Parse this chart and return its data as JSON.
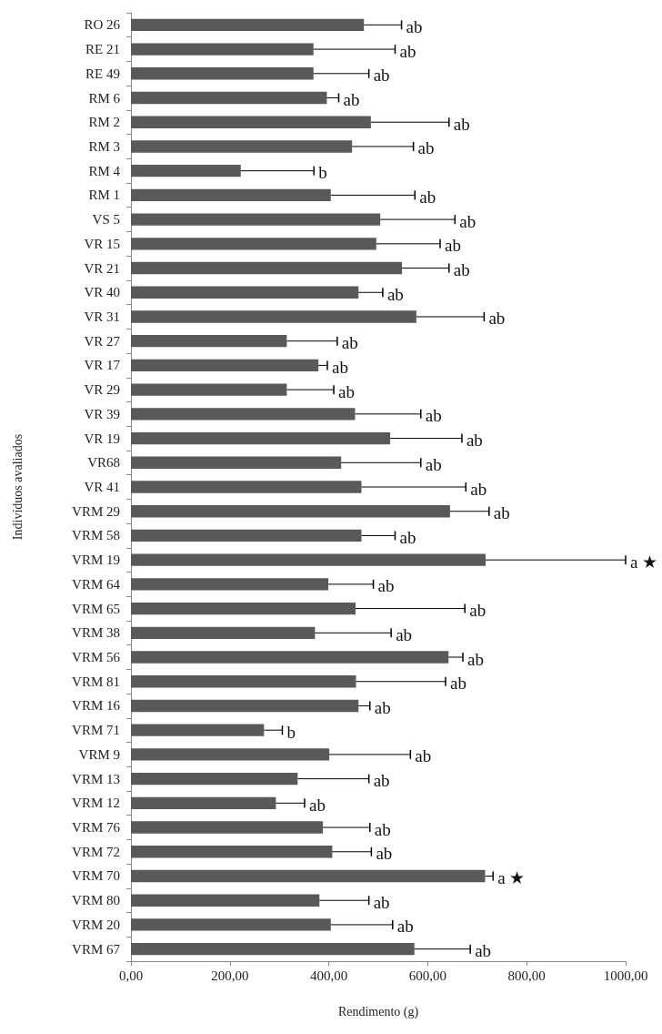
{
  "chart_data": {
    "type": "bar",
    "orientation": "horizontal",
    "xlabel": "Rendimento (g)",
    "ylabel": "Indivíduos avaliados",
    "categories": [
      "RO 26",
      "RE 21",
      "RE 49",
      "RM 6",
      "RM 2",
      "RM 3",
      "RM 4",
      "RM 1",
      "VS 5",
      "VR 15",
      "VR 21",
      "VR 40",
      "VR 31",
      "VR 27",
      "VR 17",
      "VR 29",
      "VR 39",
      "VR 19",
      "VR68",
      "VR 41",
      "VRM 29",
      "VRM 58",
      "VRM 19",
      "VRM 64",
      "VRM 65",
      "VRM 38",
      "VRM 56",
      "VRM 81",
      "VRM 16",
      "VRM 71",
      "VRM 9",
      "VRM 13",
      "VRM 12",
      "VRM 76",
      "VRM 72",
      "VRM 70",
      "VRM 80",
      "VRM 20",
      "VRM 67"
    ],
    "values": [
      471,
      369,
      369,
      396,
      485,
      447,
      222,
      404,
      504,
      496,
      548,
      460,
      577,
      315,
      379,
      315,
      453,
      524,
      425,
      466,
      645,
      466,
      717,
      399,
      454,
      372,
      642,
      455,
      460,
      269,
      401,
      337,
      293,
      388,
      407,
      716,
      381,
      404,
      573
    ],
    "errors": [
      [
        471,
        547
      ],
      [
        369,
        534
      ],
      [
        369,
        481
      ],
      [
        396,
        420
      ],
      [
        485,
        643
      ],
      [
        447,
        571
      ],
      [
        222,
        370
      ],
      [
        404,
        574
      ],
      [
        504,
        655
      ],
      [
        496,
        625
      ],
      [
        548,
        643
      ],
      [
        460,
        509
      ],
      [
        577,
        714
      ],
      [
        315,
        417
      ],
      [
        379,
        397
      ],
      [
        315,
        410
      ],
      [
        453,
        586
      ],
      [
        524,
        669
      ],
      [
        425,
        586
      ],
      [
        466,
        677
      ],
      [
        645,
        724
      ],
      [
        466,
        534
      ],
      [
        717,
        1000
      ],
      [
        399,
        490
      ],
      [
        454,
        675
      ],
      [
        372,
        526
      ],
      [
        642,
        671
      ],
      [
        455,
        636
      ],
      [
        460,
        483
      ],
      [
        269,
        306
      ],
      [
        401,
        565
      ],
      [
        337,
        481
      ],
      [
        293,
        351
      ],
      [
        388,
        483
      ],
      [
        407,
        486
      ],
      [
        716,
        732
      ],
      [
        381,
        481
      ],
      [
        404,
        529
      ],
      [
        573,
        686
      ]
    ],
    "annotations": [
      {
        "text": "ab",
        "x": 547,
        "y": "RO 26"
      },
      {
        "text": "ab",
        "x": 534,
        "y": "RE 21"
      },
      {
        "text": "ab",
        "x": 481,
        "y": "RE 49"
      },
      {
        "text": "ab",
        "x": 420,
        "y": "RM 6"
      },
      {
        "text": "ab",
        "x": 643,
        "y": "RM 2"
      },
      {
        "text": "ab",
        "x": 571,
        "y": "RM 3"
      },
      {
        "text": "b",
        "x": 370,
        "y": "RM 4"
      },
      {
        "text": "ab",
        "x": 574,
        "y": "RM 1"
      },
      {
        "text": "ab",
        "x": 655,
        "y": "VS 5"
      },
      {
        "text": "ab",
        "x": 625,
        "y": "VR 15"
      },
      {
        "text": "ab",
        "x": 643,
        "y": "VR 21"
      },
      {
        "text": "ab",
        "x": 509,
        "y": "VR 40"
      },
      {
        "text": "ab",
        "x": 714,
        "y": "VR 31"
      },
      {
        "text": "ab",
        "x": 417,
        "y": "VR 27"
      },
      {
        "text": "ab",
        "x": 397,
        "y": "VR 17"
      },
      {
        "text": "ab",
        "x": 410,
        "y": "VR 29"
      },
      {
        "text": "ab",
        "x": 586,
        "y": "VR 39"
      },
      {
        "text": "ab",
        "x": 669,
        "y": "VR 19"
      },
      {
        "text": "ab",
        "x": 586,
        "y": "VR68"
      },
      {
        "text": "ab",
        "x": 677,
        "y": "VR 41"
      },
      {
        "text": "ab",
        "x": 724,
        "y": "VRM 29"
      },
      {
        "text": "ab",
        "x": 534,
        "y": "VRM 58"
      },
      {
        "text": "a ★",
        "x": 1000,
        "y": "VRM 19"
      },
      {
        "text": "ab",
        "x": 490,
        "y": "VRM 64"
      },
      {
        "text": "ab",
        "x": 675,
        "y": "VRM 65"
      },
      {
        "text": "ab",
        "x": 526,
        "y": "VRM 38"
      },
      {
        "text": "ab",
        "x": 671,
        "y": "VRM 56"
      },
      {
        "text": "ab",
        "x": 636,
        "y": "VRM 81"
      },
      {
        "text": "ab",
        "x": 483,
        "y": "VRM 16"
      },
      {
        "text": "b",
        "x": 306,
        "y": "VRM 71"
      },
      {
        "text": "ab",
        "x": 565,
        "y": "VRM 9"
      },
      {
        "text": "ab",
        "x": 481,
        "y": "VRM 13"
      },
      {
        "text": "ab",
        "x": 351,
        "y": "VRM 12"
      },
      {
        "text": "ab",
        "x": 483,
        "y": "VRM 76"
      },
      {
        "text": "ab",
        "x": 486,
        "y": "VRM 72"
      },
      {
        "text": "a ★",
        "x": 732,
        "y": "VRM 70"
      },
      {
        "text": "ab",
        "x": 481,
        "y": "VRM 80"
      },
      {
        "text": "ab",
        "x": 529,
        "y": "VRM 20"
      },
      {
        "text": "ab",
        "x": 686,
        "y": "VRM 67"
      }
    ],
    "color": "#595959",
    "xlim": [
      0,
      1000
    ],
    "xticks": [
      {
        "value": 0,
        "label": "0,00"
      },
      {
        "value": 200,
        "label": "200,00"
      },
      {
        "value": 400,
        "label": "400,00"
      },
      {
        "value": 600,
        "label": "600,00"
      },
      {
        "value": 800,
        "label": "800,00"
      },
      {
        "value": 1000,
        "label": "1000,00"
      }
    ],
    "grid": false
  }
}
